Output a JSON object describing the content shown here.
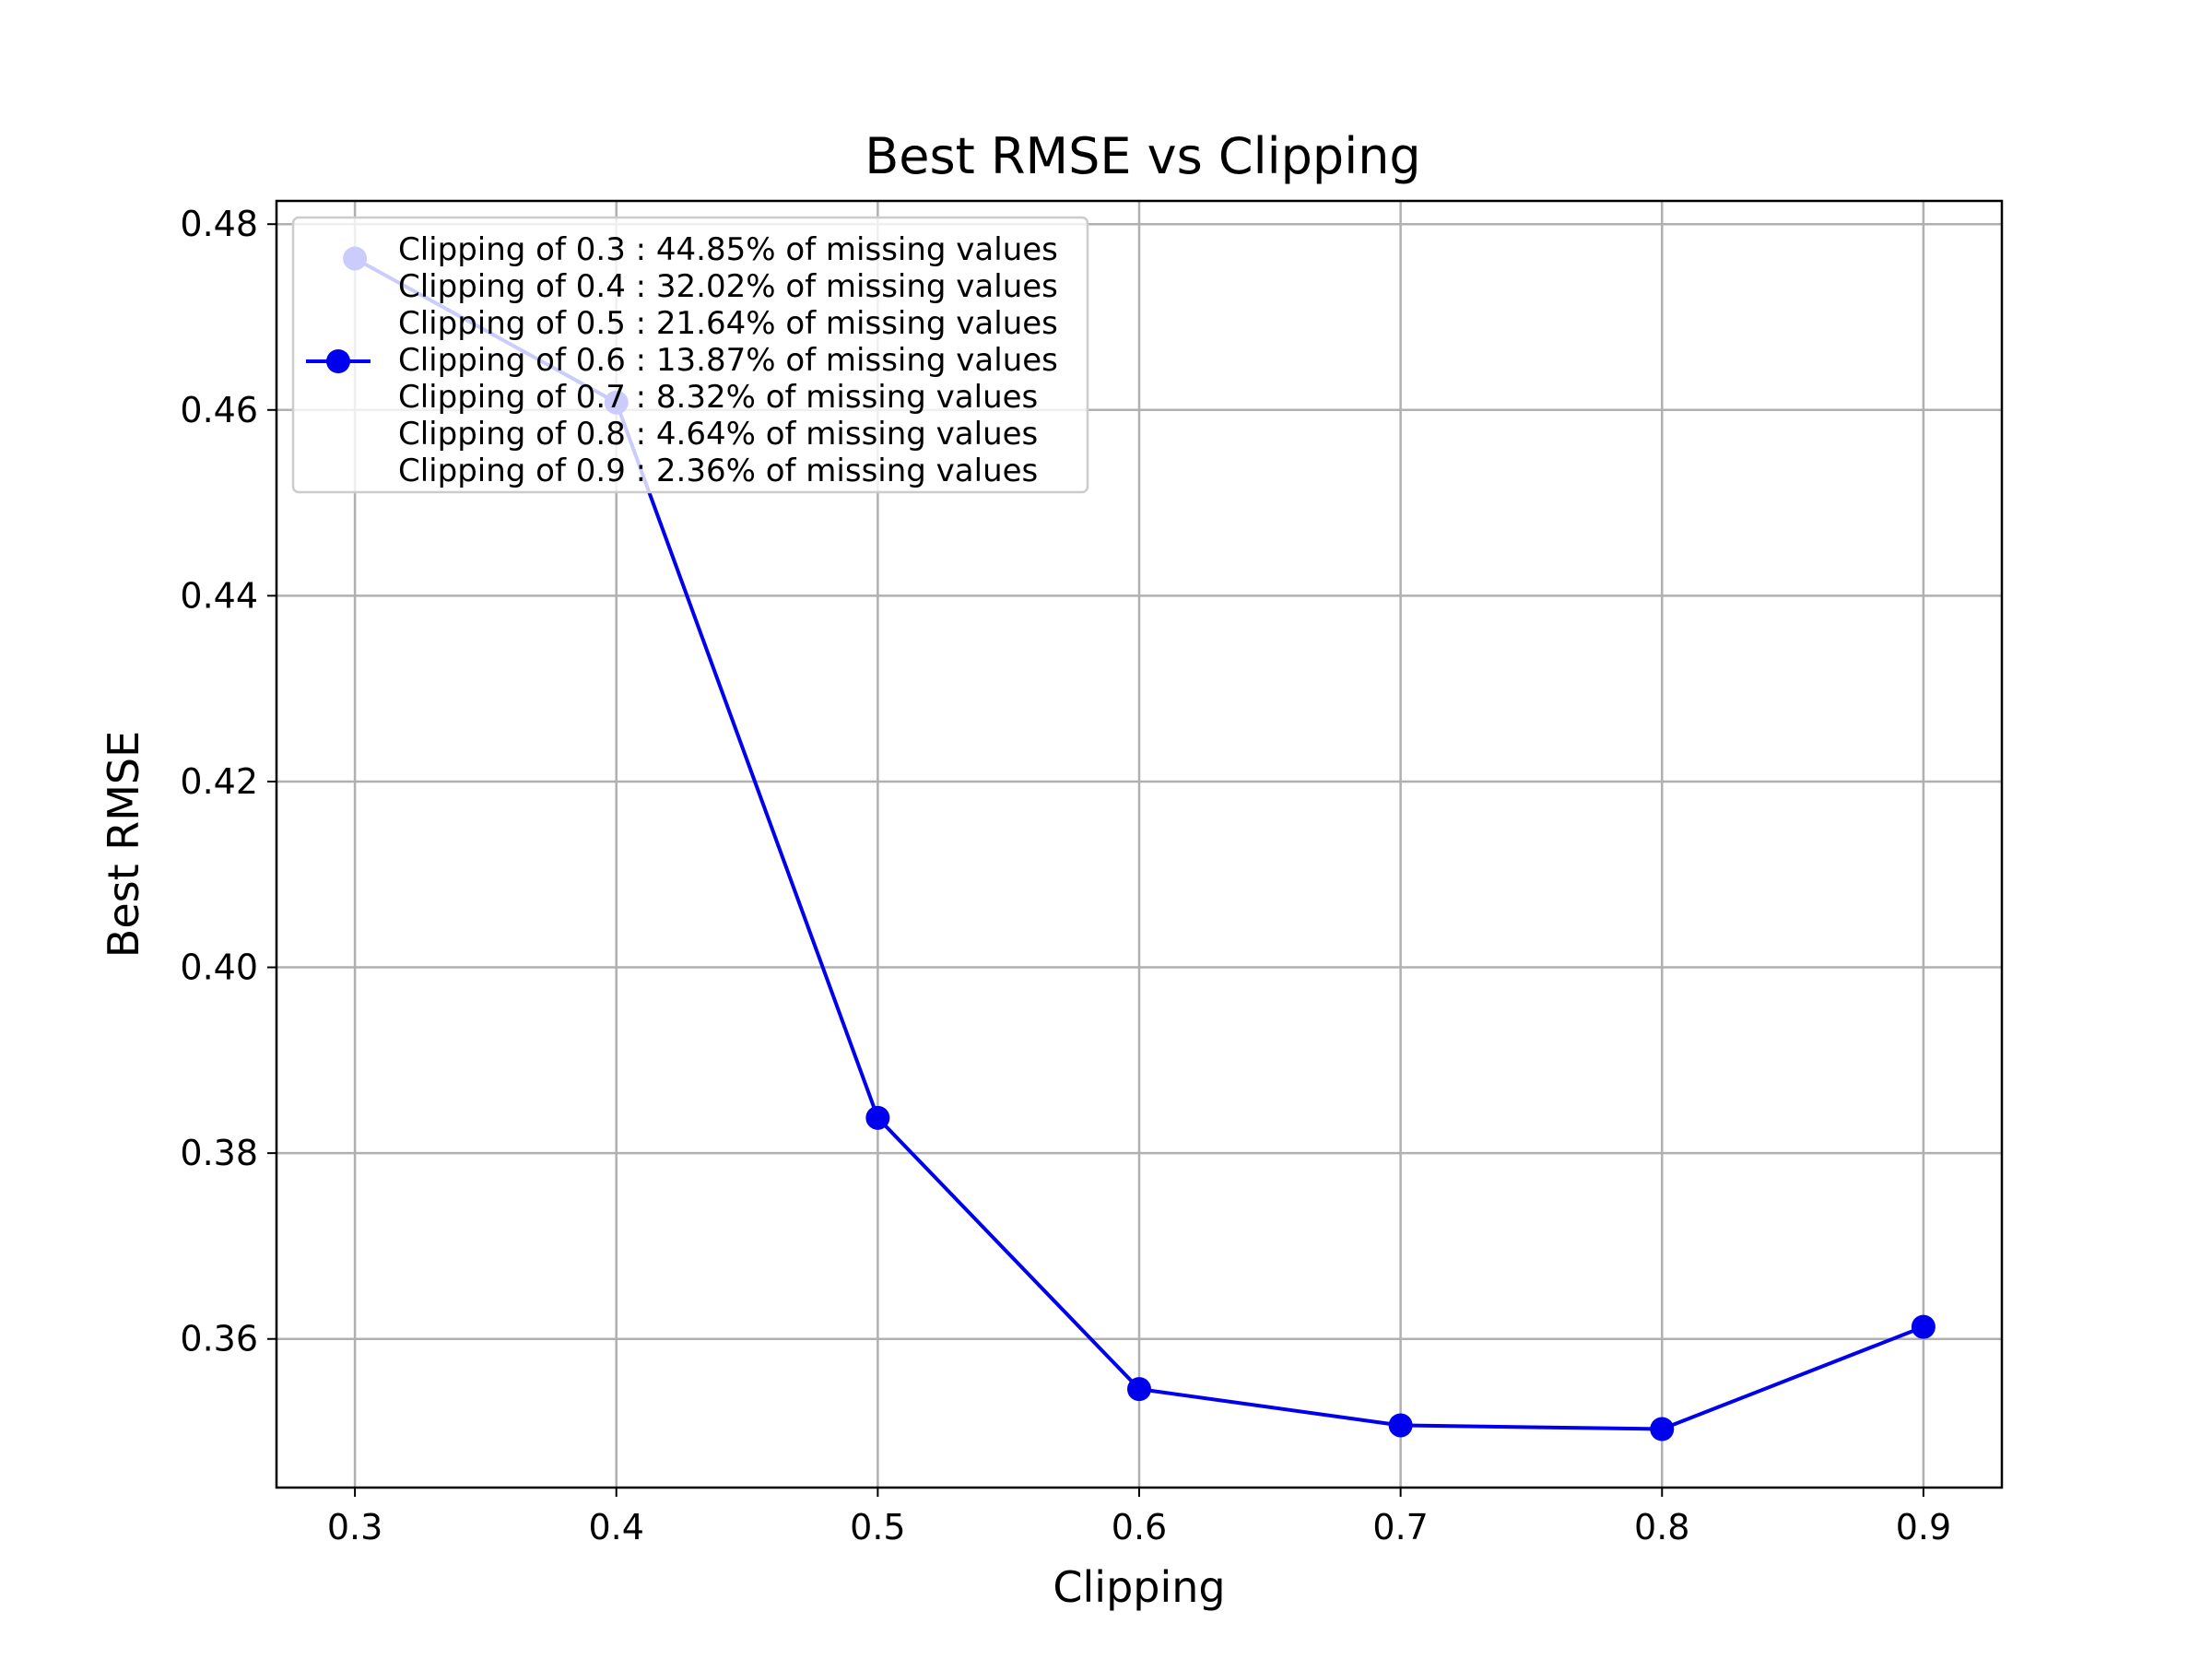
{
  "chart_data": {
    "type": "line",
    "title": "Best RMSE vs Clipping",
    "xlabel": "Clipping",
    "ylabel": "Best RMSE",
    "x": [
      0.3,
      0.4,
      0.5,
      0.6,
      0.7,
      0.8,
      0.9
    ],
    "y": [
      0.4763,
      0.4608,
      0.3838,
      0.3546,
      0.3507,
      0.3503,
      0.3613
    ],
    "xlim": [
      0.27,
      0.93
    ],
    "ylim": [
      0.344,
      0.4825
    ],
    "xticks": [
      0.3,
      0.4,
      0.5,
      0.6,
      0.7,
      0.8,
      0.9
    ],
    "xtick_labels": [
      "0.3",
      "0.4",
      "0.5",
      "0.6",
      "0.7",
      "0.8",
      "0.9"
    ],
    "yticks": [
      0.36,
      0.38,
      0.4,
      0.42,
      0.44,
      0.46,
      0.48
    ],
    "ytick_labels": [
      "0.36",
      "0.38",
      "0.40",
      "0.42",
      "0.44",
      "0.46",
      "0.48"
    ],
    "grid": true,
    "line_color": "#0000ee",
    "legend": {
      "placement": "upper-left",
      "entries": [
        "Clipping of 0.3 : 44.85% of missing values",
        "Clipping of 0.4 : 32.02% of missing values",
        "Clipping of 0.5 : 21.64% of missing values",
        "Clipping of 0.6 : 13.87% of missing values",
        "Clipping of 0.7 : 8.32% of missing values",
        "Clipping of 0.8 : 4.64% of missing values",
        "Clipping of 0.9 : 2.36% of missing values"
      ],
      "marker_entry_index": 3
    }
  }
}
